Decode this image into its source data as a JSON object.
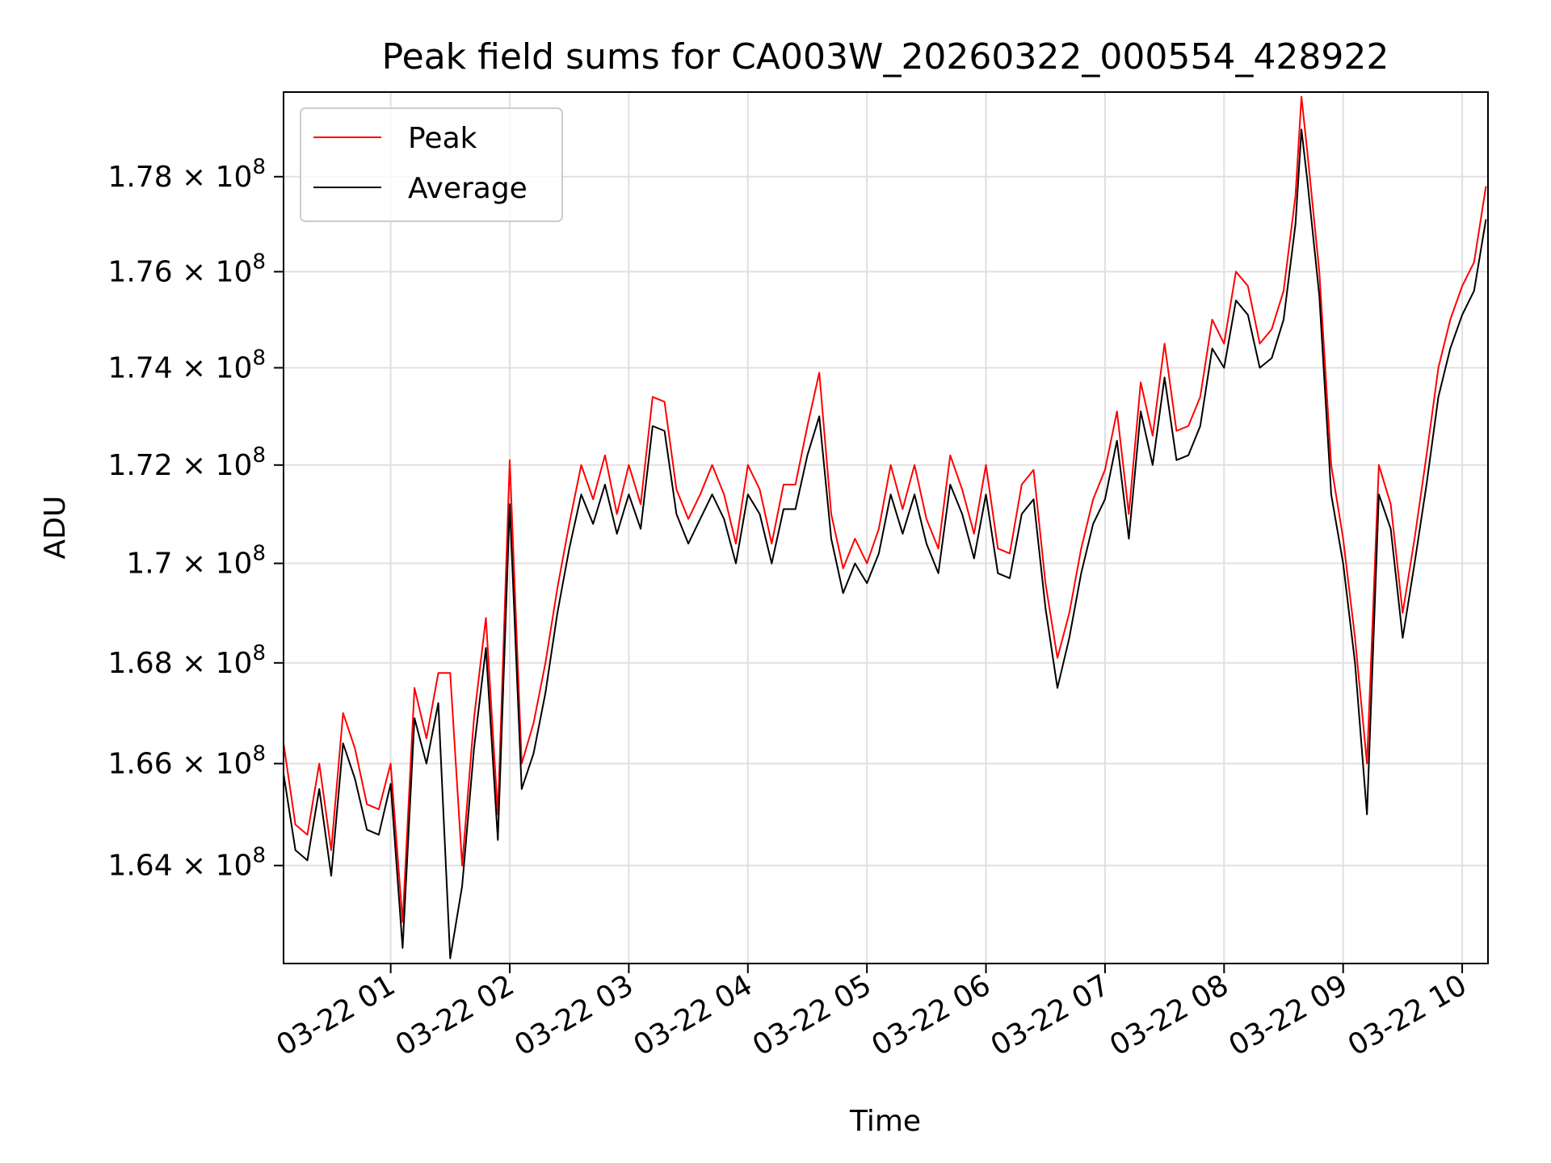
{
  "chart_data": {
    "type": "line",
    "title": "Peak field sums for CA003W_20260322_000554_428922",
    "xlabel": "Time",
    "ylabel": "ADU",
    "x_range": [
      "03-22 00:06",
      "03-22 10:13"
    ],
    "ylim": [
      162100000.0,
      179800000.0
    ],
    "y_scale": "log",
    "grid": true,
    "legend_position": "upper-left",
    "x_ticks": [
      {
        "label": "03-22 01",
        "hour": 1
      },
      {
        "label": "03-22 02",
        "hour": 2
      },
      {
        "label": "03-22 03",
        "hour": 3
      },
      {
        "label": "03-22 04",
        "hour": 4
      },
      {
        "label": "03-22 05",
        "hour": 5
      },
      {
        "label": "03-22 06",
        "hour": 6
      },
      {
        "label": "03-22 07",
        "hour": 7
      },
      {
        "label": "03-22 08",
        "hour": 8
      },
      {
        "label": "03-22 09",
        "hour": 9
      },
      {
        "label": "03-22 10",
        "hour": 10
      }
    ],
    "y_ticks": [
      {
        "mant": "1.64",
        "value": 164000000.0
      },
      {
        "mant": "1.66",
        "value": 166000000.0
      },
      {
        "mant": "1.68",
        "value": 168000000.0
      },
      {
        "mant": "1.7",
        "value": 170000000.0
      },
      {
        "mant": "1.72",
        "value": 172000000.0
      },
      {
        "mant": "1.74",
        "value": 174000000.0
      },
      {
        "mant": "1.76",
        "value": 176000000.0
      },
      {
        "mant": "1.78",
        "value": 178000000.0
      }
    ],
    "y_tick_suffix": "× 10",
    "y_tick_exponent": "8",
    "series": [
      {
        "name": "Peak",
        "color": "#ff0000",
        "x_hours": [
          0.1,
          0.2,
          0.3,
          0.4,
          0.5,
          0.6,
          0.7,
          0.8,
          0.9,
          1.0,
          1.1,
          1.2,
          1.3,
          1.4,
          1.5,
          1.6,
          1.7,
          1.8,
          1.9,
          2.0,
          2.1,
          2.2,
          2.3,
          2.4,
          2.5,
          2.6,
          2.7,
          2.8,
          2.9,
          3.0,
          3.1,
          3.2,
          3.3,
          3.4,
          3.5,
          3.6,
          3.7,
          3.8,
          3.9,
          4.0,
          4.1,
          4.2,
          4.3,
          4.4,
          4.5,
          4.6,
          4.7,
          4.8,
          4.9,
          5.0,
          5.1,
          5.2,
          5.3,
          5.4,
          5.5,
          5.6,
          5.7,
          5.8,
          5.9,
          6.0,
          6.1,
          6.2,
          6.3,
          6.4,
          6.5,
          6.6,
          6.7,
          6.8,
          6.9,
          7.0,
          7.1,
          7.2,
          7.3,
          7.4,
          7.5,
          7.6,
          7.7,
          7.8,
          7.9,
          8.0,
          8.1,
          8.2,
          8.3,
          8.4,
          8.5,
          8.6,
          8.65,
          8.7,
          8.8,
          8.9,
          9.0,
          9.1,
          9.2,
          9.3,
          9.4,
          9.5,
          9.6,
          9.7,
          9.8,
          9.9,
          10.0,
          10.1,
          10.2
        ],
        "values": [
          166400000.0,
          164800000.0,
          164600000.0,
          166000000.0,
          164300000.0,
          167000000.0,
          166300000.0,
          165200000.0,
          165100000.0,
          166000000.0,
          162900000.0,
          167500000.0,
          166500000.0,
          167800000.0,
          167800000.0,
          164000000.0,
          166900000.0,
          168900000.0,
          165000000.0,
          172100000.0,
          166000000.0,
          166800000.0,
          168000000.0,
          169500000.0,
          170800000.0,
          172000000.0,
          171300000.0,
          172200000.0,
          171000000.0,
          172000000.0,
          171200000.0,
          173400000.0,
          173300000.0,
          171500000.0,
          170900000.0,
          171400000.0,
          172000000.0,
          171400000.0,
          170400000.0,
          172000000.0,
          171500000.0,
          170400000.0,
          171600000.0,
          171600000.0,
          172800000.0,
          173900000.0,
          171000000.0,
          169900000.0,
          170500000.0,
          170000000.0,
          170700000.0,
          172000000.0,
          171100000.0,
          172000000.0,
          170900000.0,
          170300000.0,
          172200000.0,
          171500000.0,
          170600000.0,
          172000000.0,
          170300000.0,
          170200000.0,
          171600000.0,
          171900000.0,
          169600000.0,
          168100000.0,
          169000000.0,
          170300000.0,
          171300000.0,
          171900000.0,
          173100000.0,
          171000000.0,
          173700000.0,
          172600000.0,
          174500000.0,
          172700000.0,
          172800000.0,
          173400000.0,
          175000000.0,
          174500000.0,
          176000000.0,
          175700000.0,
          174500000.0,
          174800000.0,
          175600000.0,
          177600000.0,
          179700000.0,
          178500000.0,
          176000000.0,
          172000000.0,
          170500000.0,
          168500000.0,
          166000000.0,
          172000000.0,
          171200000.0,
          169000000.0,
          170500000.0,
          172200000.0,
          174000000.0,
          175000000.0,
          175700000.0,
          176200000.0,
          177800000.0
        ]
      },
      {
        "name": "Average",
        "color": "#000000",
        "x_hours": [
          0.1,
          0.2,
          0.3,
          0.4,
          0.5,
          0.6,
          0.7,
          0.8,
          0.9,
          1.0,
          1.1,
          1.2,
          1.3,
          1.4,
          1.5,
          1.6,
          1.7,
          1.8,
          1.9,
          2.0,
          2.1,
          2.2,
          2.3,
          2.4,
          2.5,
          2.6,
          2.7,
          2.8,
          2.9,
          3.0,
          3.1,
          3.2,
          3.3,
          3.4,
          3.5,
          3.6,
          3.7,
          3.8,
          3.9,
          4.0,
          4.1,
          4.2,
          4.3,
          4.4,
          4.5,
          4.6,
          4.7,
          4.8,
          4.9,
          5.0,
          5.1,
          5.2,
          5.3,
          5.4,
          5.5,
          5.6,
          5.7,
          5.8,
          5.9,
          6.0,
          6.1,
          6.2,
          6.3,
          6.4,
          6.5,
          6.6,
          6.7,
          6.8,
          6.9,
          7.0,
          7.1,
          7.2,
          7.3,
          7.4,
          7.5,
          7.6,
          7.7,
          7.8,
          7.9,
          8.0,
          8.1,
          8.2,
          8.3,
          8.4,
          8.5,
          8.6,
          8.65,
          8.7,
          8.8,
          8.9,
          9.0,
          9.1,
          9.2,
          9.3,
          9.4,
          9.5,
          9.6,
          9.7,
          9.8,
          9.9,
          10.0,
          10.1,
          10.2
        ],
        "values": [
          165800000.0,
          164300000.0,
          164100000.0,
          165500000.0,
          163800000.0,
          166400000.0,
          165700000.0,
          164700000.0,
          164600000.0,
          165600000.0,
          162400000.0,
          166900000.0,
          166000000.0,
          167200000.0,
          162200000.0,
          163600000.0,
          166300000.0,
          168300000.0,
          164500000.0,
          171200000.0,
          165500000.0,
          166200000.0,
          167400000.0,
          169000000.0,
          170300000.0,
          171400000.0,
          170800000.0,
          171600000.0,
          170600000.0,
          171400000.0,
          170700000.0,
          172800000.0,
          172700000.0,
          171000000.0,
          170400000.0,
          170900000.0,
          171400000.0,
          170900000.0,
          170000000.0,
          171400000.0,
          171000000.0,
          170000000.0,
          171100000.0,
          171100000.0,
          172200000.0,
          173000000.0,
          170500000.0,
          169400000.0,
          170000000.0,
          169600000.0,
          170200000.0,
          171400000.0,
          170600000.0,
          171400000.0,
          170400000.0,
          169800000.0,
          171600000.0,
          171000000.0,
          170100000.0,
          171400000.0,
          169800000.0,
          169700000.0,
          171000000.0,
          171300000.0,
          169100000.0,
          167500000.0,
          168500000.0,
          169800000.0,
          170800000.0,
          171300000.0,
          172500000.0,
          170500000.0,
          173100000.0,
          172000000.0,
          173800000.0,
          172100000.0,
          172200000.0,
          172800000.0,
          174400000.0,
          174000000.0,
          175400000.0,
          175100000.0,
          174000000.0,
          174200000.0,
          175000000.0,
          177000000.0,
          179000000.0,
          177900000.0,
          175500000.0,
          171400000.0,
          170000000.0,
          168000000.0,
          165000000.0,
          171400000.0,
          170700000.0,
          168500000.0,
          170000000.0,
          171600000.0,
          173400000.0,
          174400000.0,
          175100000.0,
          175600000.0,
          177100000.0
        ]
      }
    ]
  }
}
